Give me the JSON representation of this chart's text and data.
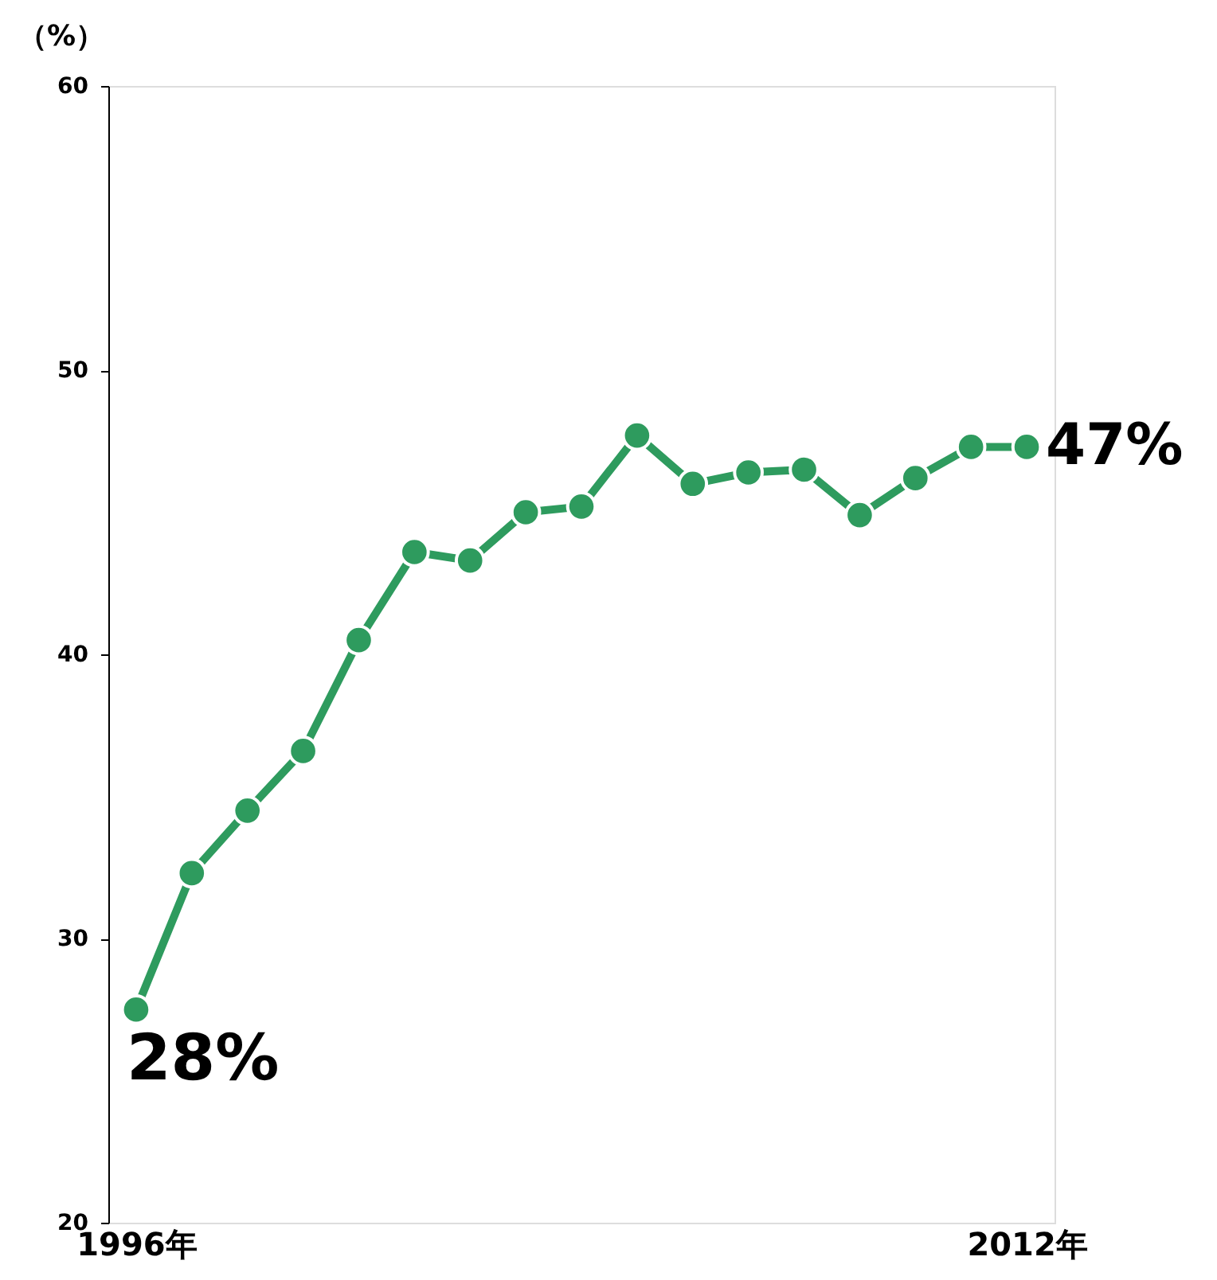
{
  "chart_data": {
    "type": "line",
    "ylabel": "（%）",
    "x": [
      1996,
      1997,
      1998,
      1999,
      2000,
      2001,
      2002,
      2003,
      2004,
      2005,
      2006,
      2007,
      2008,
      2009,
      2010,
      2011,
      2012
    ],
    "series": [
      {
        "color": "#2e9b5e",
        "values": [
          27.5,
          32.3,
          34.5,
          36.6,
          40.5,
          43.6,
          43.3,
          45.0,
          45.2,
          47.7,
          46.0,
          46.4,
          46.5,
          44.9,
          46.2,
          47.3,
          47.3
        ]
      }
    ],
    "xlim": [
      1995.5,
      2012.5
    ],
    "xticks": [
      {
        "value": 1996,
        "label": "1996年"
      },
      {
        "value": 2012,
        "label": "2012年"
      }
    ],
    "ylim": [
      20,
      60
    ],
    "yticks": [
      20,
      30,
      40,
      50,
      60
    ],
    "marker": "circle",
    "line_style": "solid",
    "grid": false,
    "annotations": [
      {
        "text": "28%",
        "x": 1996,
        "y": 27.5
      },
      {
        "text": "47%",
        "x": 2012,
        "y": 47.3
      }
    ]
  }
}
